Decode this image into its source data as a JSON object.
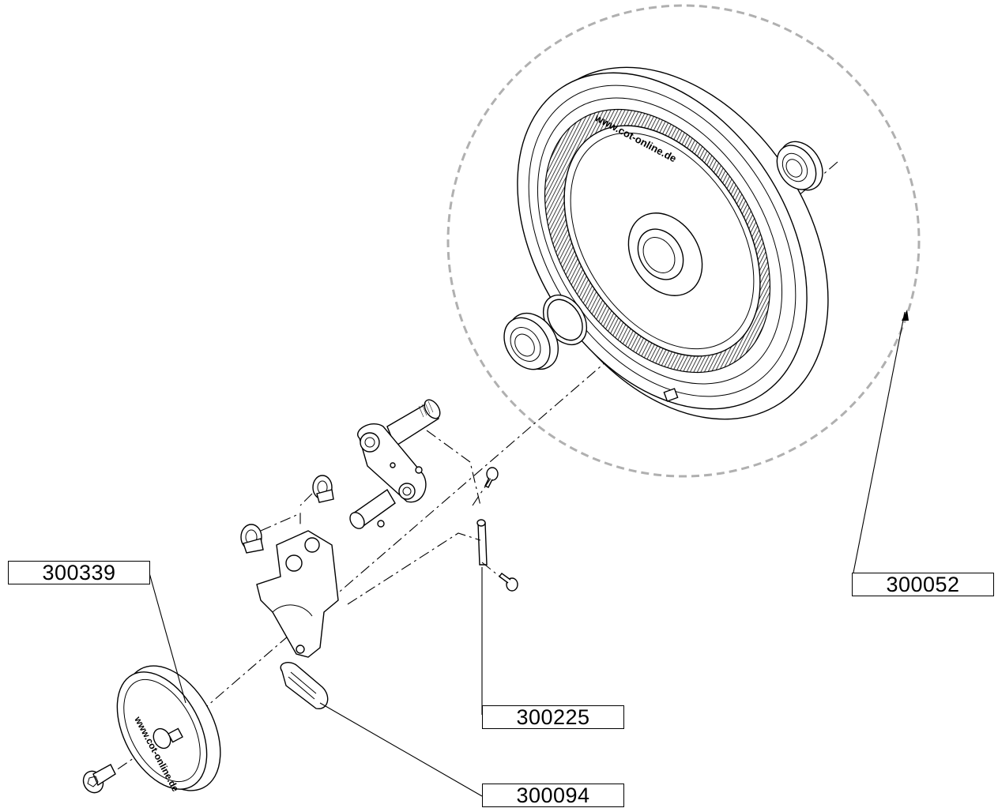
{
  "callouts": [
    {
      "id": "300339",
      "text": "300339"
    },
    {
      "id": "300052",
      "text": "300052"
    },
    {
      "id": "300225",
      "text": "300225"
    },
    {
      "id": "300094",
      "text": "300094"
    }
  ],
  "embossed": {
    "large_wheel": "www.cot-online.de",
    "small_wheel": "www.cot-online.de"
  },
  "colors": {
    "line": "#000000",
    "dashed_circle": "#b0b0b0",
    "background": "#ffffff"
  }
}
